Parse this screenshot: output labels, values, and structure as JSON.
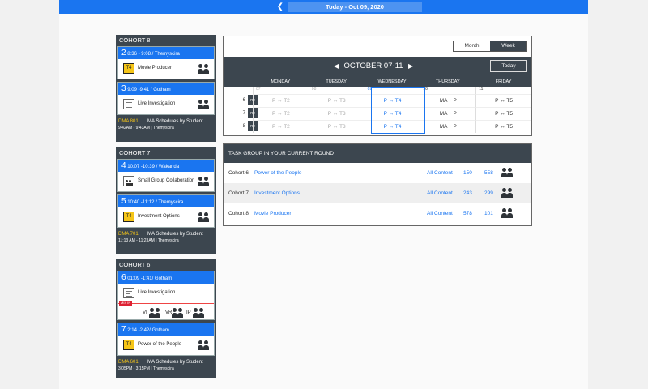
{
  "header": {
    "date_label": "Today - Oct 09, 2020",
    "back_glyph": "❮"
  },
  "cohorts": [
    {
      "title": "COHORT 8",
      "sessions": [
        {
          "num": "2",
          "time": "8:36 - 9:08 / Themyscira",
          "title": "Movie Producer",
          "badge": "T4"
        },
        {
          "num": "3",
          "time": "9:09 -9:41 / Gotham",
          "title": "Live Investigation"
        }
      ],
      "footer": {
        "dma": "DMA 801",
        "desc": "MA Schedules by Student",
        "time": "9:42AM - 9:43AM | Themyscira"
      }
    },
    {
      "title": "COHORT 7",
      "sessions": [
        {
          "num": "4",
          "time": "10:07 -10:39 / Wakanda",
          "title": "Small Group Collaboration"
        },
        {
          "num": "5",
          "time": "10:40 -11:12 / Themyscira",
          "title": "Investment Options",
          "badge": "T4"
        }
      ],
      "footer": {
        "dma": "DMA 701",
        "desc": "MA Schedules by Student",
        "time": "11:13 AM - 11:23AM | Themyscira"
      }
    },
    {
      "title": "COHORT 6",
      "sessions": [
        {
          "num": "6",
          "time": "01:09 -1:41/ Gotham",
          "title": "Live Investigation"
        },
        {
          "num": "7",
          "time": "2:14 -2:42/ Gotham",
          "title": "Power of the People",
          "badge": "T4"
        }
      ],
      "mix": {
        "tag": "MIX IN",
        "labels": [
          "VI",
          "VR",
          "IP"
        ]
      },
      "footer": {
        "dma": "DMA 601",
        "desc": "MA Schedules by Student",
        "time": "3:05PM - 3:15PM | Themyscira"
      }
    }
  ],
  "calendar": {
    "toggle": [
      "Month",
      "Week"
    ],
    "title": "OCTOBER 07-11",
    "prev": "◀",
    "next": "▶",
    "today": "Today",
    "days": [
      "MONDAY",
      "TUESDAY",
      "WEDNESDAY",
      "THURSDAY",
      "FRIDAY"
    ],
    "dates": [
      "07",
      "08",
      "09",
      "10",
      "11"
    ],
    "rows": [
      {
        "n": "6",
        "r": "R2",
        "cells": [
          "P ↔ T2",
          "P ↔ T3",
          "P ↔ T4",
          "MA + P",
          "P ↔ T5"
        ]
      },
      {
        "n": "7",
        "r": "R2",
        "cells": [
          "P ↔ T2",
          "P ↔ T3",
          "P ↔ T4",
          "MA + P",
          "P ↔ T5"
        ]
      },
      {
        "n": "8",
        "r": "R2",
        "cells": [
          "P ↔ T2",
          "P ↔ T3",
          "P ↔ T4",
          "MA + P",
          "P ↔ T5"
        ]
      }
    ]
  },
  "tasks": {
    "title": "TASK GROUP IN YOUR CURRENT ROUND",
    "rows": [
      {
        "cohort": "Cohort 6",
        "task": "Power of the People",
        "content": "All Content",
        "a": "150",
        "b": "558"
      },
      {
        "cohort": "Cohort 7",
        "task": "Investment Options",
        "content": "All Content",
        "a": "243",
        "b": "299"
      },
      {
        "cohort": "Cohort 8",
        "task": "Movie Producer",
        "content": "All Content",
        "a": "578",
        "b": "101"
      }
    ]
  }
}
